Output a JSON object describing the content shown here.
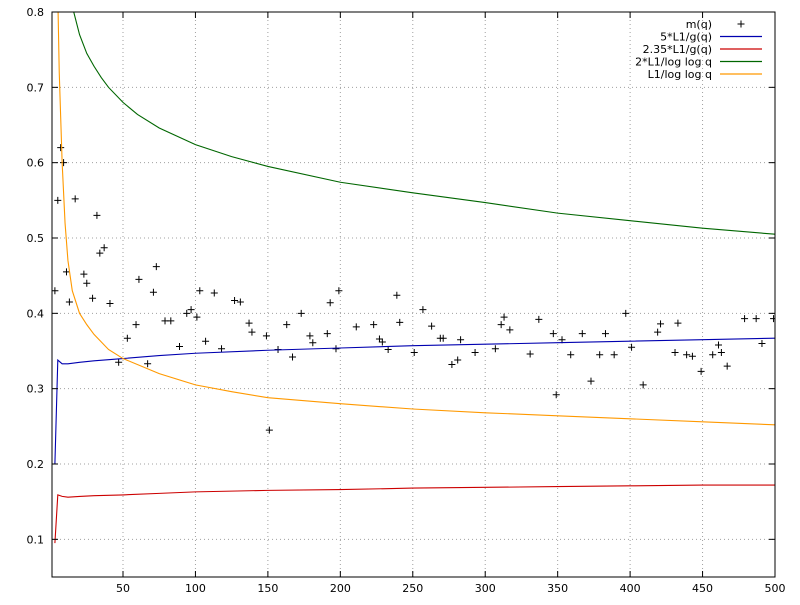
{
  "chart_data": {
    "type": "line",
    "xlim": [
      1,
      500
    ],
    "ylim": [
      0.05,
      0.8
    ],
    "grid": true,
    "legend_position": "top-right",
    "x_ticks": [
      {
        "value": 50,
        "label": "50"
      },
      {
        "value": 100,
        "label": "100"
      },
      {
        "value": 150,
        "label": "150"
      },
      {
        "value": 200,
        "label": "200"
      },
      {
        "value": 250,
        "label": "250"
      },
      {
        "value": 300,
        "label": "300"
      },
      {
        "value": 350,
        "label": "350"
      },
      {
        "value": 400,
        "label": "400"
      },
      {
        "value": 450,
        "label": "450"
      },
      {
        "value": 500,
        "label": "500"
      }
    ],
    "y_ticks": [
      {
        "value": 0.1,
        "label": "0.1"
      },
      {
        "value": 0.2,
        "label": "0.2"
      },
      {
        "value": 0.3,
        "label": "0.3"
      },
      {
        "value": 0.4,
        "label": "0.4"
      },
      {
        "value": 0.5,
        "label": "0.5"
      },
      {
        "value": 0.6,
        "label": "0.6"
      },
      {
        "value": 0.7,
        "label": "0.7"
      },
      {
        "value": 0.8,
        "label": "0.8"
      }
    ],
    "series": [
      {
        "name": "m(q)",
        "kind": "points",
        "marker": "+",
        "color": "#000000",
        "points": [
          [
            3,
            0.43
          ],
          [
            5,
            0.55
          ],
          [
            7,
            0.62
          ],
          [
            9,
            0.6
          ],
          [
            11,
            0.455
          ],
          [
            13,
            0.415
          ],
          [
            17,
            0.552
          ],
          [
            23,
            0.452
          ],
          [
            25,
            0.44
          ],
          [
            29,
            0.42
          ],
          [
            32,
            0.53
          ],
          [
            34,
            0.48
          ],
          [
            37,
            0.487
          ],
          [
            41,
            0.413
          ],
          [
            47,
            0.335
          ],
          [
            53,
            0.367
          ],
          [
            59,
            0.385
          ],
          [
            61,
            0.445
          ],
          [
            67,
            0.333
          ],
          [
            71,
            0.428
          ],
          [
            73,
            0.462
          ],
          [
            79,
            0.39
          ],
          [
            83,
            0.39
          ],
          [
            89,
            0.356
          ],
          [
            94,
            0.4
          ],
          [
            97,
            0.405
          ],
          [
            101,
            0.395
          ],
          [
            103,
            0.43
          ],
          [
            107,
            0.363
          ],
          [
            113,
            0.427
          ],
          [
            118,
            0.353
          ],
          [
            127,
            0.417
          ],
          [
            131,
            0.415
          ],
          [
            137,
            0.387
          ],
          [
            139,
            0.375
          ],
          [
            149,
            0.37
          ],
          [
            151,
            0.245
          ],
          [
            157,
            0.352
          ],
          [
            163,
            0.385
          ],
          [
            167,
            0.342
          ],
          [
            173,
            0.4
          ],
          [
            179,
            0.37
          ],
          [
            181,
            0.361
          ],
          [
            191,
            0.373
          ],
          [
            193,
            0.414
          ],
          [
            197,
            0.353
          ],
          [
            199,
            0.43
          ],
          [
            211,
            0.382
          ],
          [
            223,
            0.385
          ],
          [
            227,
            0.366
          ],
          [
            229,
            0.362
          ],
          [
            233,
            0.352
          ],
          [
            239,
            0.424
          ],
          [
            241,
            0.388
          ],
          [
            251,
            0.348
          ],
          [
            257,
            0.405
          ],
          [
            263,
            0.383
          ],
          [
            269,
            0.367
          ],
          [
            271,
            0.367
          ],
          [
            277,
            0.332
          ],
          [
            281,
            0.338
          ],
          [
            283,
            0.365
          ],
          [
            293,
            0.348
          ],
          [
            307,
            0.353
          ],
          [
            311,
            0.385
          ],
          [
            313,
            0.395
          ],
          [
            317,
            0.378
          ],
          [
            331,
            0.346
          ],
          [
            337,
            0.392
          ],
          [
            347,
            0.373
          ],
          [
            349,
            0.292
          ],
          [
            353,
            0.365
          ],
          [
            359,
            0.345
          ],
          [
            367,
            0.373
          ],
          [
            373,
            0.31
          ],
          [
            379,
            0.345
          ],
          [
            383,
            0.373
          ],
          [
            389,
            0.345
          ],
          [
            397,
            0.4
          ],
          [
            401,
            0.355
          ],
          [
            409,
            0.305
          ],
          [
            419,
            0.375
          ],
          [
            421,
            0.386
          ],
          [
            431,
            0.348
          ],
          [
            433,
            0.387
          ],
          [
            439,
            0.345
          ],
          [
            443,
            0.343
          ],
          [
            449,
            0.323
          ],
          [
            457,
            0.345
          ],
          [
            461,
            0.358
          ],
          [
            463,
            0.348
          ],
          [
            467,
            0.33
          ],
          [
            479,
            0.393
          ],
          [
            487,
            0.393
          ],
          [
            491,
            0.36
          ],
          [
            499,
            0.393
          ]
        ]
      },
      {
        "name": "5*L1/g(q)",
        "kind": "line",
        "color": "#0000b0",
        "points": [
          [
            3,
            0.2
          ],
          [
            5,
            0.338
          ],
          [
            8,
            0.333
          ],
          [
            12,
            0.333
          ],
          [
            20,
            0.335
          ],
          [
            30,
            0.337
          ],
          [
            50,
            0.34
          ],
          [
            75,
            0.344
          ],
          [
            100,
            0.347
          ],
          [
            150,
            0.351
          ],
          [
            200,
            0.354
          ],
          [
            250,
            0.357
          ],
          [
            300,
            0.359
          ],
          [
            350,
            0.361
          ],
          [
            400,
            0.363
          ],
          [
            450,
            0.365
          ],
          [
            500,
            0.367
          ]
        ]
      },
      {
        "name": "2.35*L1/g(q)",
        "kind": "line",
        "color": "#cc0000",
        "points": [
          [
            3,
            0.095
          ],
          [
            5,
            0.159
          ],
          [
            8,
            0.157
          ],
          [
            12,
            0.156
          ],
          [
            20,
            0.157
          ],
          [
            30,
            0.158
          ],
          [
            50,
            0.159
          ],
          [
            75,
            0.161
          ],
          [
            100,
            0.163
          ],
          [
            150,
            0.165
          ],
          [
            200,
            0.166
          ],
          [
            250,
            0.168
          ],
          [
            300,
            0.169
          ],
          [
            350,
            0.17
          ],
          [
            400,
            0.171
          ],
          [
            450,
            0.172
          ],
          [
            500,
            0.172
          ]
        ]
      },
      {
        "name": "2*L1/log log q",
        "kind": "line",
        "color": "#006600",
        "points": [
          [
            16,
            0.8
          ],
          [
            20,
            0.77
          ],
          [
            25,
            0.745
          ],
          [
            30,
            0.728
          ],
          [
            35,
            0.713
          ],
          [
            40,
            0.7
          ],
          [
            50,
            0.68
          ],
          [
            60,
            0.664
          ],
          [
            75,
            0.646
          ],
          [
            100,
            0.624
          ],
          [
            125,
            0.608
          ],
          [
            150,
            0.595
          ],
          [
            200,
            0.574
          ],
          [
            250,
            0.56
          ],
          [
            300,
            0.547
          ],
          [
            350,
            0.533
          ],
          [
            400,
            0.523
          ],
          [
            450,
            0.513
          ],
          [
            500,
            0.505
          ]
        ]
      },
      {
        "name": "L1/log log q",
        "kind": "line",
        "color": "#ff9900",
        "points": [
          [
            5.2,
            0.8
          ],
          [
            6,
            0.72
          ],
          [
            7,
            0.66
          ],
          [
            8,
            0.6
          ],
          [
            10,
            0.52
          ],
          [
            12,
            0.47
          ],
          [
            15,
            0.43
          ],
          [
            20,
            0.4
          ],
          [
            25,
            0.385
          ],
          [
            30,
            0.372
          ],
          [
            40,
            0.352
          ],
          [
            50,
            0.34
          ],
          [
            75,
            0.32
          ],
          [
            100,
            0.305
          ],
          [
            125,
            0.296
          ],
          [
            150,
            0.288
          ],
          [
            200,
            0.28
          ],
          [
            250,
            0.273
          ],
          [
            300,
            0.268
          ],
          [
            350,
            0.264
          ],
          [
            400,
            0.26
          ],
          [
            450,
            0.256
          ],
          [
            500,
            0.252
          ]
        ]
      }
    ]
  }
}
